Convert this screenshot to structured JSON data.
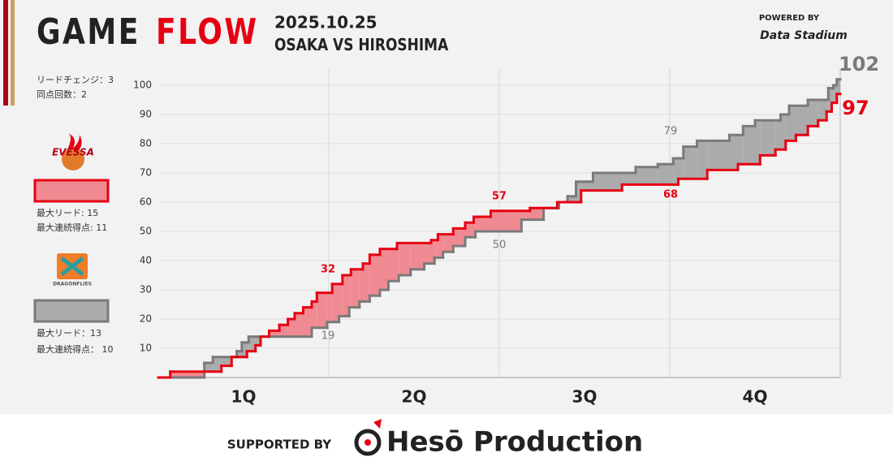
{
  "header": {
    "title_1": "GAME",
    "title_2": "FLOW",
    "date": "2025.10.25",
    "matchup": "OSAKA VS HIROSHIMA",
    "powered_by": "POWERED BY",
    "sponsor_logo": "Data Stadium"
  },
  "summary": {
    "lead_changes": "リードチェンジ：3",
    "ties": "同点回数：2"
  },
  "teams": [
    {
      "logo": "EVESSA",
      "max_lead": "最大リード: 15",
      "max_run": "最大連続得点: 11"
    },
    {
      "logo": "DRAGONFLIES",
      "max_lead": "最大リード：13",
      "max_run": "最大連続得点： 10"
    }
  ],
  "chart_data": {
    "type": "step",
    "categories": [
      "1Q",
      "2Q",
      "3Q",
      "4Q"
    ],
    "xlim": [
      0,
      40
    ],
    "ylim": [
      0,
      100
    ],
    "yticks": [
      10,
      20,
      30,
      40,
      50,
      60,
      70,
      80,
      90,
      100
    ],
    "grid": true,
    "series": [
      {
        "color": "#e60012",
        "fill": "#f08a92",
        "x": [
          0,
          0.7,
          3.7,
          4.3,
          5.2,
          5.7,
          6,
          6.5,
          7.1,
          7.6,
          8,
          8.5,
          9,
          9.3,
          10.2,
          10.8,
          11.3,
          12,
          12.4,
          13,
          14,
          16,
          16.4,
          17.3,
          18,
          18.5,
          19.5,
          21.8,
          23.4,
          24.8,
          27.2,
          30.5,
          32.2,
          34,
          35.3,
          36.2,
          36.8,
          37.4,
          38.1,
          38.7,
          39.2,
          39.5,
          39.8
        ],
        "values": [
          0,
          2,
          4,
          7,
          9,
          11,
          14,
          16,
          18,
          20,
          22,
          24,
          26,
          29,
          32,
          35,
          37,
          39,
          42,
          44,
          46,
          47,
          49,
          51,
          53,
          55,
          57,
          58,
          60,
          64,
          66,
          68,
          71,
          73,
          76,
          78,
          81,
          83,
          86,
          88,
          91,
          94,
          97
        ]
      },
      {
        "color": "#7a7a7a",
        "fill": "#ababab",
        "x": [
          0,
          2.7,
          3.2,
          4.6,
          4.9,
          5.3,
          9,
          9.9,
          10.6,
          11.2,
          11.8,
          12.4,
          13,
          13.5,
          14.1,
          14.8,
          15.6,
          16.2,
          16.7,
          17.3,
          18,
          18.6,
          21.3,
          22.6,
          23.5,
          24,
          24.5,
          25.5,
          28,
          29.3,
          30.2,
          30.8,
          31.6,
          33.5,
          34.3,
          35,
          36.5,
          37,
          38.1,
          39.3,
          39.6,
          39.8
        ],
        "values": [
          0,
          5,
          7,
          9,
          12,
          14,
          17,
          19,
          21,
          24,
          26,
          28,
          30,
          33,
          35,
          37,
          39,
          41,
          43,
          45,
          48,
          50,
          54,
          58,
          60,
          62,
          67,
          70,
          72,
          73,
          75,
          79,
          81,
          83,
          86,
          88,
          90,
          93,
          95,
          99,
          100,
          102
        ]
      }
    ]
  },
  "footer": {
    "supported_by": "SUPPORTED BY",
    "sponsor": "Hesō Production"
  }
}
